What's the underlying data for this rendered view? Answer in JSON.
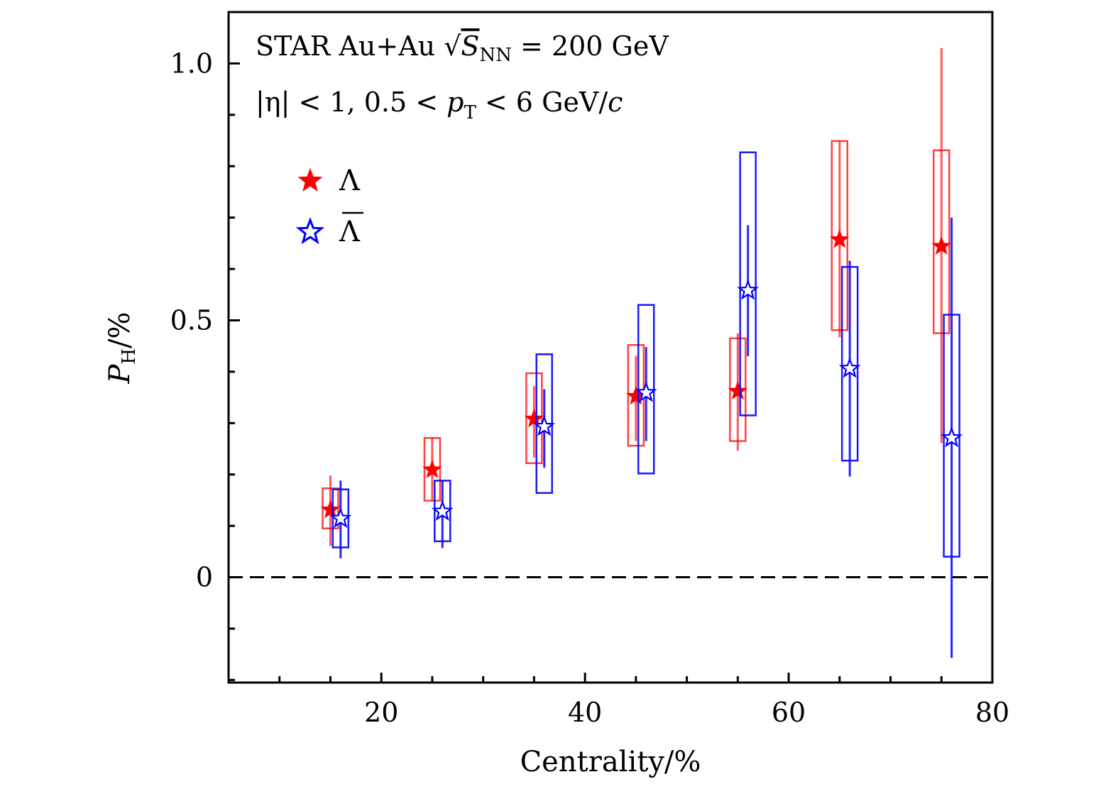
{
  "chart_data": {
    "type": "scatter",
    "title": "",
    "annotations": [
      {
        "name": "collision-label",
        "text": "STAR Au+Au √S_NN = 200 GeV"
      },
      {
        "name": "kinematic-cuts",
        "text": "|η| < 1, 0.5 < p_T < 6 GeV/c"
      }
    ],
    "xlabel": "Centrality/%",
    "ylabel": "P_H/%",
    "xlim": [
      5,
      80
    ],
    "ylim": [
      -0.205,
      1.1
    ],
    "xticks": [
      20,
      40,
      60,
      80
    ],
    "xtick_labels": [
      "20",
      "40",
      "60",
      "80"
    ],
    "xminor_step": 5,
    "yticks": [
      0,
      0.5,
      1.0
    ],
    "ytick_labels": [
      "0",
      "0.5",
      "1.0"
    ],
    "yminor_step": 0.1,
    "grid": false,
    "reference_line": {
      "y": 0,
      "style": "dashed"
    },
    "legend": {
      "placement": "top-left",
      "entries": [
        "Λ",
        "Λ̄"
      ]
    },
    "series": [
      {
        "name": "Λ",
        "marker": "filled-star",
        "color": "#ff0000",
        "x": [
          15,
          25,
          35,
          45,
          55,
          65,
          75
        ],
        "y": [
          0.131,
          0.209,
          0.308,
          0.352,
          0.362,
          0.657,
          0.644
        ],
        "stat_low": [
          0.061,
          0.149,
          0.233,
          0.265,
          0.246,
          0.467,
          0.261
        ],
        "stat_high": [
          0.198,
          0.271,
          0.372,
          0.431,
          0.475,
          0.849,
          1.03
        ],
        "sys_low": [
          0.095,
          0.149,
          0.222,
          0.256,
          0.265,
          0.481,
          0.475
        ],
        "sys_high": [
          0.173,
          0.271,
          0.397,
          0.452,
          0.465,
          0.849,
          0.831
        ]
      },
      {
        "name": "Λ̄",
        "marker": "open-star",
        "color": "#0000ff",
        "x": [
          16,
          26,
          36,
          46,
          56,
          66,
          76
        ],
        "y": [
          0.114,
          0.128,
          0.293,
          0.359,
          0.558,
          0.406,
          0.271
        ],
        "stat_low": [
          0.037,
          0.057,
          0.213,
          0.265,
          0.43,
          0.196,
          -0.157
        ],
        "stat_high": [
          0.188,
          0.189,
          0.366,
          0.448,
          0.685,
          0.616,
          0.7
        ],
        "sys_low": [
          0.058,
          0.07,
          0.164,
          0.202,
          0.315,
          0.227,
          0.04
        ],
        "sys_high": [
          0.171,
          0.188,
          0.434,
          0.53,
          0.827,
          0.604,
          0.511
        ]
      }
    ]
  }
}
